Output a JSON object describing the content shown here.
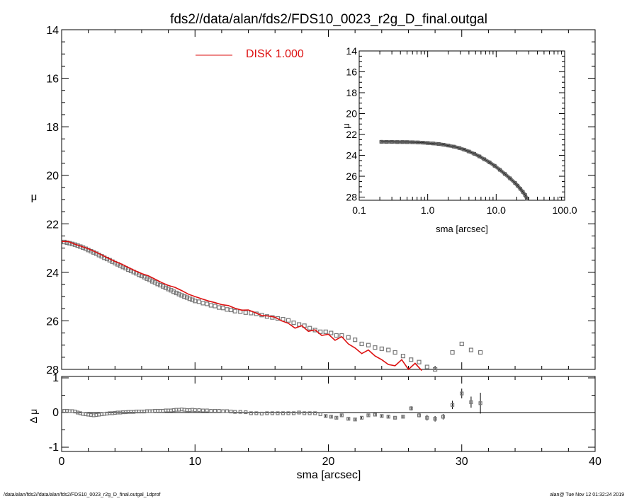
{
  "title": "fds2//data/alan/fds2/FDS10_0023_r2g_D_final.outgal",
  "footer": {
    "left": "/data/alan/fds2//data/alan/fds2/FDS10_0023_r2g_D_final.outgal_1dprof",
    "right": "alan@  Tue Nov 12 01:32:24 2019"
  },
  "colors": {
    "model": "#dd1111",
    "data": "#777777",
    "axes": "#000000"
  },
  "chart_data": [
    {
      "id": "main",
      "type": "scatter",
      "xlabel": "",
      "ylabel": "μ",
      "xlim": [
        0,
        40
      ],
      "ylim": [
        28,
        14
      ],
      "y_inverted": true,
      "yticks": [
        "14",
        "16",
        "18",
        "20",
        "22",
        "24",
        "26",
        "28"
      ],
      "legend": {
        "placement": "top-center",
        "entries": [
          {
            "name": "DISK  1.000",
            "color": "#dd1111"
          }
        ]
      },
      "series": [
        {
          "kind": "data",
          "x": [
            0.2,
            0.4,
            0.6,
            0.8,
            1.0,
            1.2,
            1.4,
            1.6,
            1.8,
            2.0,
            2.2,
            2.4,
            2.6,
            2.8,
            3.0,
            3.2,
            3.4,
            3.6,
            3.8,
            4.0,
            4.2,
            4.4,
            4.6,
            4.8,
            5.0,
            5.2,
            5.4,
            5.6,
            5.8,
            6.0,
            6.2,
            6.4,
            6.6,
            6.8,
            7.0,
            7.2,
            7.4,
            7.6,
            7.8,
            8.0,
            8.2,
            8.4,
            8.6,
            8.8,
            9.0,
            9.2,
            9.4,
            9.6,
            9.8,
            10.0,
            10.3,
            10.6,
            10.9,
            11.2,
            11.5,
            11.8,
            12.1,
            12.4,
            12.7,
            13.0,
            13.4,
            13.8,
            14.2,
            14.6,
            15.0,
            15.4,
            15.8,
            16.2,
            16.6,
            17.0,
            17.4,
            17.8,
            18.2,
            18.6,
            19.0,
            19.4,
            19.8,
            20.2,
            20.6,
            21.0,
            21.5,
            22.0,
            22.5,
            23.0,
            23.5,
            24.0,
            24.5,
            25.0,
            25.6,
            26.2,
            26.8,
            27.4,
            28.0,
            28.6,
            29.3,
            30.0,
            30.7,
            31.4
          ],
          "y": [
            22.75,
            22.78,
            22.8,
            22.83,
            22.86,
            22.9,
            22.94,
            22.98,
            23.03,
            23.08,
            23.13,
            23.18,
            23.23,
            23.29,
            23.34,
            23.4,
            23.45,
            23.5,
            23.56,
            23.62,
            23.67,
            23.73,
            23.78,
            23.83,
            23.89,
            23.94,
            23.99,
            24.04,
            24.1,
            24.15,
            24.2,
            24.26,
            24.31,
            24.37,
            24.42,
            24.48,
            24.53,
            24.58,
            24.64,
            24.69,
            24.74,
            24.8,
            24.85,
            24.9,
            24.95,
            25.0,
            25.04,
            25.09,
            25.13,
            25.18,
            25.21,
            25.27,
            25.3,
            25.36,
            25.39,
            25.45,
            25.47,
            25.53,
            25.55,
            25.6,
            25.62,
            25.66,
            25.68,
            25.71,
            25.76,
            25.82,
            25.86,
            25.9,
            25.93,
            25.98,
            26.08,
            26.15,
            26.2,
            26.3,
            26.38,
            26.45,
            26.45,
            26.5,
            26.6,
            26.6,
            26.68,
            26.78,
            26.95,
            27.0,
            27.1,
            27.15,
            27.2,
            27.3,
            27.45,
            27.6,
            27.7,
            27.9,
            28.0,
            28.2,
            27.3,
            26.95,
            27.2,
            27.3
          ]
        },
        {
          "kind": "model",
          "name": "DISK  1.000",
          "x": [
            0.0,
            0.5,
            1.0,
            1.5,
            2.0,
            2.5,
            3.0,
            3.5,
            4.0,
            4.5,
            5.0,
            5.5,
            6.0,
            6.5,
            7.0,
            7.5,
            8.0,
            8.5,
            9.0,
            9.5,
            10.0,
            10.5,
            11.0,
            11.5,
            12.0,
            12.5,
            13.0,
            13.5,
            14.0,
            14.5,
            15.0,
            15.5,
            16.0,
            16.5,
            17.0,
            17.5,
            18.0,
            18.5,
            19.0,
            19.5,
            20.0,
            20.5,
            21.0,
            21.5,
            22.0,
            22.5,
            23.0,
            23.5,
            24.0,
            24.5,
            25.0,
            25.5,
            26.0,
            26.5,
            27.0
          ],
          "y": [
            22.73,
            22.73,
            22.84,
            22.93,
            23.03,
            23.15,
            23.28,
            23.42,
            23.55,
            23.66,
            23.8,
            23.93,
            24.05,
            24.14,
            24.28,
            24.42,
            24.54,
            24.62,
            24.75,
            24.9,
            25.0,
            25.09,
            25.18,
            25.25,
            25.33,
            25.37,
            25.48,
            25.56,
            25.55,
            25.66,
            25.78,
            25.8,
            25.85,
            26.0,
            26.1,
            26.3,
            26.2,
            26.43,
            26.37,
            26.6,
            26.55,
            26.8,
            26.65,
            26.95,
            27.12,
            27.35,
            27.2,
            27.45,
            27.6,
            27.8,
            27.85,
            27.6,
            28.0,
            27.75,
            28.05
          ]
        }
      ]
    },
    {
      "id": "residual",
      "type": "scatter",
      "xlabel": "sma [arcsec]",
      "ylabel": "Δ μ",
      "xlim": [
        0,
        40
      ],
      "ylim": [
        -1.1,
        1.1
      ],
      "xticks": [
        "0",
        "10",
        "20",
        "30",
        "40"
      ],
      "yticks": [
        "1",
        "0",
        "-1"
      ],
      "hline": 0,
      "series": [
        {
          "kind": "residuals",
          "x": [
            0.2,
            0.4,
            0.6,
            0.8,
            1.0,
            1.2,
            1.4,
            1.6,
            1.8,
            2.0,
            2.2,
            2.4,
            2.6,
            2.8,
            3.0,
            3.2,
            3.4,
            3.6,
            3.8,
            4.0,
            4.2,
            4.4,
            4.6,
            4.8,
            5.0,
            5.2,
            5.4,
            5.6,
            5.8,
            6.0,
            6.2,
            6.4,
            6.6,
            6.8,
            7.0,
            7.2,
            7.4,
            7.6,
            7.8,
            8.0,
            8.2,
            8.4,
            8.6,
            8.8,
            9.0,
            9.2,
            9.4,
            9.6,
            9.8,
            10.0,
            10.3,
            10.6,
            10.9,
            11.2,
            11.5,
            11.8,
            12.1,
            12.4,
            12.7,
            13.0,
            13.4,
            13.8,
            14.2,
            14.6,
            15.0,
            15.4,
            15.8,
            16.2,
            16.6,
            17.0,
            17.4,
            17.8,
            18.2,
            18.6,
            19.0,
            19.4,
            19.8,
            20.2,
            20.6,
            21.0,
            21.5,
            22.0,
            22.5,
            23.0,
            23.5,
            24.0,
            24.5,
            25.0,
            25.6,
            26.2,
            26.8,
            27.4,
            28.0,
            28.6,
            29.3,
            30.0,
            30.7,
            31.4
          ],
          "y": [
            0.05,
            0.05,
            0.04,
            0.04,
            0.03,
            0.0,
            -0.02,
            -0.04,
            -0.05,
            -0.06,
            -0.07,
            -0.08,
            -0.07,
            -0.06,
            -0.05,
            -0.04,
            -0.03,
            -0.02,
            -0.02,
            -0.01,
            0.0,
            0.0,
            0.01,
            0.01,
            0.02,
            0.02,
            0.02,
            0.03,
            0.03,
            0.03,
            0.03,
            0.04,
            0.04,
            0.04,
            0.05,
            0.05,
            0.05,
            0.05,
            0.06,
            0.06,
            0.06,
            0.07,
            0.08,
            0.08,
            0.09,
            0.08,
            0.07,
            0.07,
            0.08,
            0.07,
            0.07,
            0.06,
            0.06,
            0.05,
            0.05,
            0.05,
            0.04,
            0.04,
            0.03,
            0.02,
            0.02,
            0.01,
            -0.02,
            -0.02,
            -0.03,
            -0.02,
            -0.02,
            -0.02,
            -0.02,
            -0.02,
            -0.02,
            0.0,
            -0.02,
            -0.02,
            -0.02,
            -0.05,
            -0.1,
            -0.12,
            -0.15,
            -0.08,
            -0.18,
            -0.2,
            -0.15,
            -0.08,
            -0.06,
            -0.1,
            -0.12,
            -0.15,
            -0.12,
            0.12,
            -0.08,
            -0.15,
            -0.18,
            -0.12,
            0.22,
            0.55,
            0.3,
            0.27
          ],
          "err": [
            0.01,
            0.01,
            0.01,
            0.01,
            0.01,
            0.01,
            0.01,
            0.01,
            0.01,
            0.01,
            0.01,
            0.01,
            0.01,
            0.01,
            0.01,
            0.01,
            0.01,
            0.01,
            0.01,
            0.01,
            0.01,
            0.01,
            0.01,
            0.01,
            0.01,
            0.01,
            0.01,
            0.01,
            0.01,
            0.01,
            0.01,
            0.01,
            0.01,
            0.01,
            0.01,
            0.01,
            0.01,
            0.01,
            0.01,
            0.01,
            0.02,
            0.02,
            0.02,
            0.02,
            0.02,
            0.02,
            0.02,
            0.02,
            0.02,
            0.02,
            0.02,
            0.02,
            0.02,
            0.02,
            0.02,
            0.02,
            0.02,
            0.02,
            0.02,
            0.02,
            0.02,
            0.02,
            0.02,
            0.02,
            0.02,
            0.02,
            0.02,
            0.02,
            0.02,
            0.02,
            0.02,
            0.02,
            0.02,
            0.02,
            0.02,
            0.02,
            0.03,
            0.03,
            0.03,
            0.03,
            0.03,
            0.03,
            0.03,
            0.03,
            0.03,
            0.03,
            0.03,
            0.04,
            0.04,
            0.06,
            0.06,
            0.08,
            0.08,
            0.08,
            0.12,
            0.14,
            0.16,
            0.3
          ]
        }
      ]
    },
    {
      "id": "inset",
      "type": "scatter",
      "xlabel": "sma [arcsec]",
      "ylabel": "μ",
      "x_scale": "log",
      "xlim": [
        0.1,
        100
      ],
      "ylim": [
        28.3,
        14
      ],
      "y_inverted": true,
      "xticks": [
        "0.1",
        "1.0",
        "10.0",
        "100.0"
      ],
      "yticks": [
        "14",
        "16",
        "18",
        "20",
        "22",
        "24",
        "26",
        "28"
      ],
      "series": [
        {
          "kind": "data",
          "x": [
            0.21,
            0.25,
            0.3,
            0.36,
            0.43,
            0.5,
            0.6,
            0.72,
            0.85,
            1.0,
            1.2,
            1.45,
            1.7,
            2.0,
            2.4,
            2.9,
            3.4,
            4.0,
            4.8,
            5.7,
            6.7,
            8.0,
            9.5,
            11.3,
            13.4,
            15.9,
            18.9,
            20.5,
            22.5,
            24.5,
            26.5,
            28.0
          ],
          "y": [
            22.7,
            22.71,
            22.71,
            22.72,
            22.72,
            22.73,
            22.74,
            22.76,
            22.78,
            22.82,
            22.86,
            22.91,
            22.98,
            23.06,
            23.16,
            23.3,
            23.45,
            23.63,
            23.85,
            24.1,
            24.37,
            24.67,
            25.0,
            25.38,
            25.78,
            26.2,
            26.65,
            26.9,
            27.2,
            27.5,
            27.8,
            28.15
          ]
        }
      ]
    }
  ]
}
